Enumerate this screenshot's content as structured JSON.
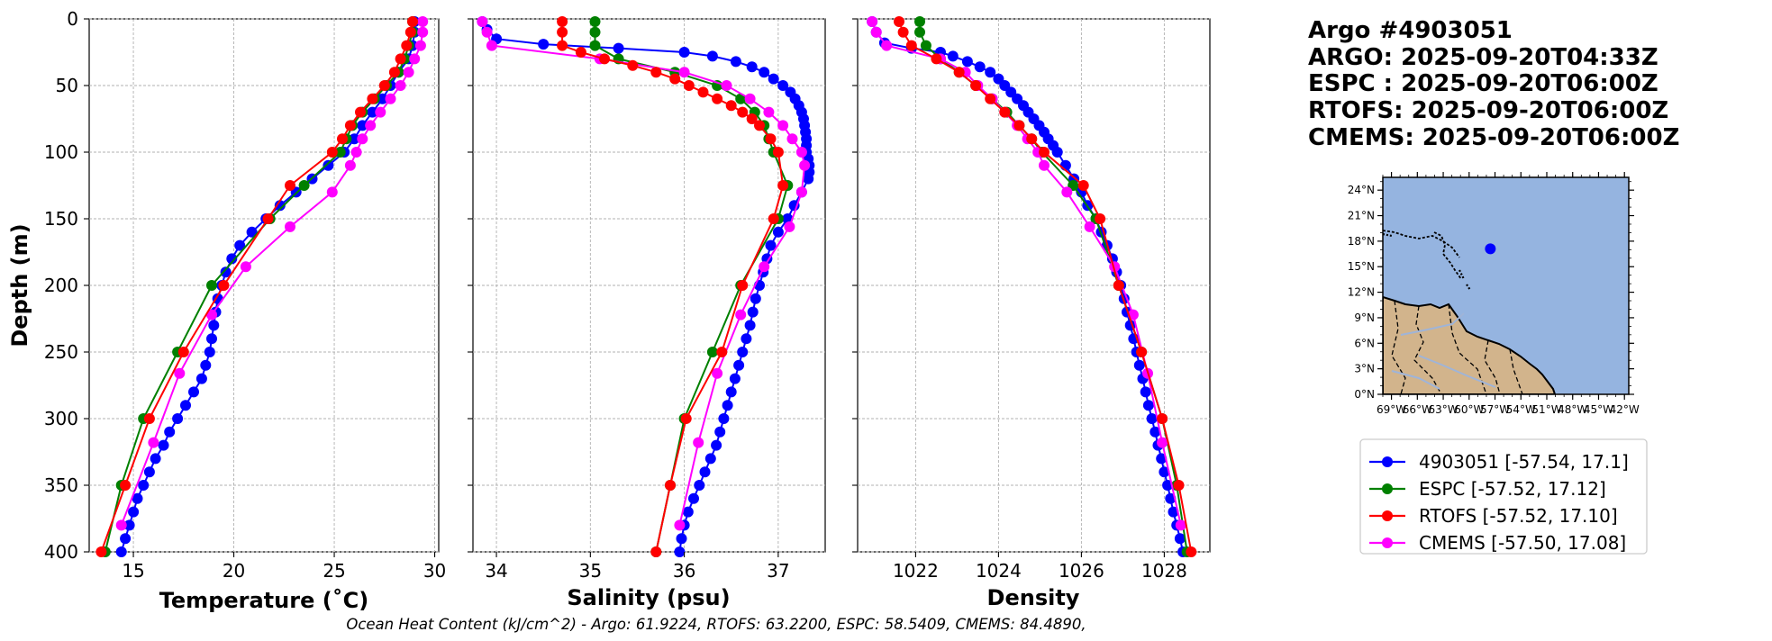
{
  "info_title": [
    "Argo #4903051",
    "ARGO: 2025-09-20T04:33Z",
    "ESPC : 2025-09-20T06:00Z",
    "RTOFS: 2025-09-20T06:00Z",
    "CMEMS: 2025-09-20T06:00Z"
  ],
  "caption": "Ocean Heat Content (kJ/cm^2) - Argo: 61.9224,  RTOFS: 63.2200,  ESPC: 58.5409,  CMEMS: 84.4890,",
  "colors": {
    "argo": "#0000ff",
    "espc": "#008000",
    "rtofs": "#ff0000",
    "cmems": "#ff00ff",
    "ocean": "#95b4e0",
    "land": "#d2b48c"
  },
  "legend": [
    {
      "label": "4903051 [-57.54, 17.1]",
      "color": "#0000ff"
    },
    {
      "label": "ESPC [-57.52, 17.12]",
      "color": "#008000"
    },
    {
      "label": "RTOFS [-57.52, 17.10]",
      "color": "#ff0000"
    },
    {
      "label": "CMEMS [-57.50, 17.08]",
      "color": "#ff00ff"
    }
  ],
  "map": {
    "lon_ticks": [
      "69°W",
      "66°W",
      "63°W",
      "60°W",
      "57°W",
      "54°W",
      "51°W",
      "48°W",
      "45°W",
      "42°W"
    ],
    "lat_ticks": [
      "24°N",
      "21°N",
      "18°N",
      "15°N",
      "12°N",
      "9°N",
      "6°N",
      "3°N",
      "0°N"
    ],
    "lon_range": [
      -70,
      -41.5
    ],
    "lat_range": [
      0,
      25.5
    ],
    "float": {
      "lon": -57.54,
      "lat": 17.1
    }
  },
  "chart_data": [
    {
      "type": "line",
      "title": "",
      "xlabel": "Temperature (˚C)",
      "ylabel": "Depth (m)",
      "xlim": [
        12.8,
        30.2
      ],
      "ylim": [
        400,
        0
      ],
      "xticks": [
        15,
        20,
        25,
        30
      ],
      "yticks": [
        0,
        50,
        100,
        150,
        200,
        250,
        300,
        350,
        400
      ],
      "series": [
        {
          "name": "4903051",
          "color": "#0000ff",
          "depth": [
            2,
            10,
            20,
            30,
            40,
            50,
            60,
            70,
            80,
            90,
            100,
            110,
            120,
            130,
            140,
            150,
            160,
            170,
            180,
            190,
            200,
            210,
            220,
            230,
            240,
            250,
            260,
            270,
            280,
            290,
            300,
            310,
            320,
            330,
            340,
            350,
            360,
            370,
            380,
            390,
            400
          ],
          "values": [
            29.0,
            29.0,
            28.9,
            28.7,
            28.2,
            27.8,
            27.4,
            26.9,
            26.4,
            26.0,
            25.5,
            24.7,
            23.9,
            23.1,
            22.3,
            21.6,
            20.9,
            20.3,
            19.9,
            19.6,
            19.4,
            19.2,
            19.1,
            19.0,
            18.9,
            18.8,
            18.6,
            18.4,
            18.0,
            17.6,
            17.2,
            16.8,
            16.5,
            16.1,
            15.8,
            15.5,
            15.2,
            15.0,
            14.8,
            14.6,
            14.4
          ]
        },
        {
          "name": "ESPC",
          "color": "#008000",
          "depth": [
            2,
            10,
            20,
            30,
            40,
            50,
            60,
            70,
            80,
            90,
            100,
            125,
            150,
            200,
            250,
            300,
            350,
            400
          ],
          "values": [
            28.9,
            28.9,
            28.7,
            28.5,
            28.2,
            27.6,
            27.0,
            26.4,
            25.9,
            25.6,
            25.3,
            23.5,
            21.8,
            18.9,
            17.2,
            15.5,
            14.4,
            13.6
          ]
        },
        {
          "name": "RTOFS",
          "color": "#ff0000",
          "depth": [
            2,
            10,
            20,
            30,
            40,
            50,
            60,
            70,
            80,
            90,
            100,
            125,
            150,
            200,
            250,
            300,
            350,
            400
          ],
          "values": [
            28.9,
            28.8,
            28.6,
            28.3,
            28.0,
            27.5,
            26.9,
            26.3,
            25.8,
            25.4,
            24.9,
            22.8,
            21.7,
            19.5,
            17.5,
            15.8,
            14.6,
            13.4
          ]
        },
        {
          "name": "CMEMS",
          "color": "#ff00ff",
          "depth": [
            2,
            10,
            20,
            30,
            40,
            50,
            60,
            70,
            80,
            90,
            100,
            110,
            130,
            156,
            186,
            222,
            266,
            318,
            380
          ],
          "values": [
            29.4,
            29.4,
            29.3,
            29.0,
            28.7,
            28.3,
            27.8,
            27.3,
            26.8,
            26.4,
            26.1,
            25.8,
            24.9,
            22.8,
            20.6,
            18.9,
            17.3,
            16.0,
            14.4
          ]
        }
      ]
    },
    {
      "type": "line",
      "title": "",
      "xlabel": "Salinity (psu)",
      "ylabel": "",
      "xlim": [
        33.75,
        37.5
      ],
      "ylim": [
        400,
        0
      ],
      "xticks": [
        34,
        35,
        36,
        37
      ],
      "series": [
        {
          "name": "4903051",
          "color": "#0000ff",
          "depth": [
            2,
            8,
            15,
            19,
            22,
            25,
            28,
            32,
            36,
            40,
            45,
            50,
            55,
            60,
            65,
            70,
            75,
            80,
            85,
            90,
            95,
            100,
            105,
            110,
            115,
            120,
            130,
            140,
            150,
            160,
            170,
            180,
            190,
            200,
            210,
            220,
            230,
            240,
            250,
            260,
            270,
            280,
            290,
            300,
            310,
            320,
            330,
            340,
            350,
            360,
            370,
            380,
            390,
            400
          ],
          "values": [
            33.85,
            33.9,
            34.0,
            34.5,
            35.3,
            36.0,
            36.3,
            36.55,
            36.72,
            36.85,
            36.95,
            37.05,
            37.13,
            37.18,
            37.22,
            37.25,
            37.27,
            37.28,
            37.29,
            37.3,
            37.3,
            37.3,
            37.32,
            37.33,
            37.33,
            37.32,
            37.25,
            37.17,
            37.1,
            37.0,
            36.92,
            36.88,
            36.84,
            36.8,
            36.76,
            36.73,
            36.7,
            36.66,
            36.62,
            36.58,
            36.54,
            36.5,
            36.46,
            36.42,
            36.38,
            36.34,
            36.28,
            36.22,
            36.16,
            36.1,
            36.04,
            36.0,
            35.97,
            35.95
          ]
        },
        {
          "name": "ESPC",
          "color": "#008000",
          "depth": [
            2,
            10,
            20,
            30,
            40,
            50,
            60,
            70,
            80,
            90,
            100,
            125,
            150,
            200,
            250,
            300,
            350,
            400
          ],
          "values": [
            35.05,
            35.05,
            35.05,
            35.3,
            35.9,
            36.35,
            36.6,
            36.75,
            36.85,
            36.9,
            36.95,
            37.1,
            37.0,
            36.6,
            36.3,
            36.0,
            35.85,
            35.7
          ]
        },
        {
          "name": "RTOFS",
          "color": "#ff0000",
          "depth": [
            2,
            10,
            20,
            25,
            30,
            35,
            40,
            45,
            50,
            55,
            60,
            65,
            70,
            75,
            80,
            90,
            100,
            125,
            150,
            200,
            250,
            300,
            350,
            400
          ],
          "values": [
            34.7,
            34.7,
            34.7,
            34.9,
            35.15,
            35.45,
            35.7,
            35.9,
            36.05,
            36.2,
            36.35,
            36.5,
            36.62,
            36.72,
            36.8,
            36.92,
            37.0,
            37.05,
            36.95,
            36.62,
            36.4,
            36.02,
            35.85,
            35.7
          ]
        },
        {
          "name": "CMEMS",
          "color": "#ff00ff",
          "depth": [
            2,
            10,
            20,
            30,
            40,
            50,
            60,
            70,
            80,
            90,
            100,
            110,
            130,
            156,
            186,
            222,
            266,
            318,
            380
          ],
          "values": [
            33.85,
            33.9,
            33.95,
            35.1,
            36.0,
            36.45,
            36.7,
            36.9,
            37.05,
            37.15,
            37.25,
            37.28,
            37.25,
            37.12,
            36.85,
            36.6,
            36.35,
            36.15,
            35.95
          ]
        }
      ]
    },
    {
      "type": "line",
      "title": "",
      "xlabel": "Density",
      "ylabel": "",
      "xlim": [
        1020.6,
        1029.1
      ],
      "ylim": [
        400,
        0
      ],
      "xticks": [
        1022,
        1024,
        1026,
        1028
      ],
      "series": [
        {
          "name": "4903051",
          "color": "#0000ff",
          "depth": [
            2,
            10,
            18,
            22,
            25,
            28,
            32,
            36,
            40,
            45,
            50,
            55,
            60,
            65,
            70,
            75,
            80,
            85,
            90,
            95,
            100,
            110,
            120,
            130,
            140,
            150,
            160,
            170,
            180,
            190,
            200,
            210,
            220,
            230,
            240,
            250,
            260,
            270,
            280,
            290,
            300,
            310,
            320,
            330,
            340,
            350,
            360,
            370,
            380,
            390,
            400
          ],
          "values": [
            1020.95,
            1021.05,
            1021.25,
            1021.9,
            1022.6,
            1022.9,
            1023.25,
            1023.55,
            1023.8,
            1024.0,
            1024.15,
            1024.3,
            1024.45,
            1024.6,
            1024.72,
            1024.85,
            1024.98,
            1025.1,
            1025.2,
            1025.32,
            1025.42,
            1025.62,
            1025.82,
            1026.0,
            1026.15,
            1026.35,
            1026.48,
            1026.62,
            1026.75,
            1026.85,
            1026.95,
            1027.03,
            1027.1,
            1027.18,
            1027.26,
            1027.33,
            1027.4,
            1027.48,
            1027.55,
            1027.62,
            1027.7,
            1027.78,
            1027.85,
            1027.93,
            1028.0,
            1028.08,
            1028.15,
            1028.22,
            1028.3,
            1028.38,
            1028.45
          ]
        },
        {
          "name": "ESPC",
          "color": "#008000",
          "depth": [
            2,
            10,
            20,
            30,
            40,
            50,
            60,
            70,
            80,
            90,
            100,
            125,
            150,
            200,
            250,
            300,
            350,
            400
          ],
          "values": [
            1022.1,
            1022.1,
            1022.25,
            1022.6,
            1023.05,
            1023.45,
            1023.85,
            1024.2,
            1024.5,
            1024.8,
            1025.05,
            1025.8,
            1026.35,
            1026.9,
            1027.45,
            1027.95,
            1028.3,
            1028.55
          ]
        },
        {
          "name": "RTOFS",
          "color": "#ff0000",
          "depth": [
            2,
            10,
            20,
            30,
            40,
            50,
            60,
            70,
            80,
            90,
            100,
            125,
            150,
            200,
            250,
            300,
            350,
            400
          ],
          "values": [
            1021.6,
            1021.7,
            1021.9,
            1022.5,
            1023.05,
            1023.45,
            1023.8,
            1024.15,
            1024.5,
            1024.8,
            1025.1,
            1026.05,
            1026.45,
            1026.9,
            1027.45,
            1027.95,
            1028.35,
            1028.65
          ]
        },
        {
          "name": "CMEMS",
          "color": "#ff00ff",
          "depth": [
            2,
            10,
            20,
            30,
            40,
            50,
            60,
            70,
            80,
            90,
            100,
            110,
            130,
            156,
            186,
            222,
            266,
            318,
            380
          ],
          "values": [
            1020.95,
            1021.05,
            1021.3,
            1022.6,
            1023.2,
            1023.5,
            1023.85,
            1024.15,
            1024.45,
            1024.7,
            1024.95,
            1025.1,
            1025.65,
            1026.2,
            1026.8,
            1027.25,
            1027.6,
            1027.95,
            1028.4
          ]
        }
      ]
    }
  ]
}
